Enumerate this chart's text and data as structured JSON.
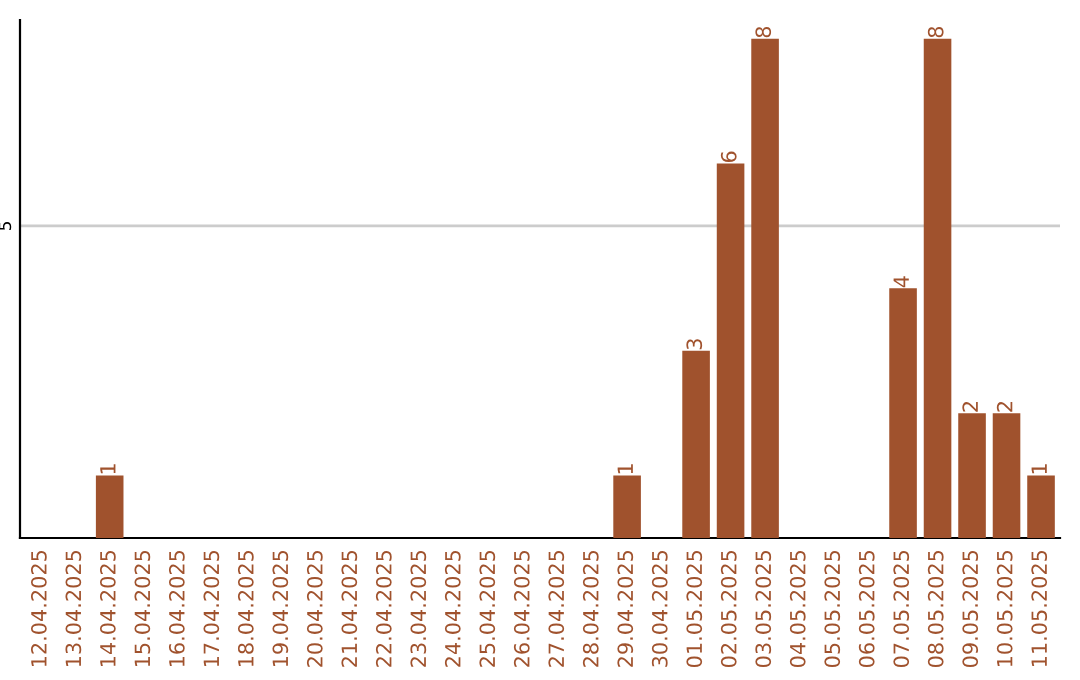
{
  "chart_data": {
    "type": "bar",
    "categories": [
      "12.04.2025",
      "13.04.2025",
      "14.04.2025",
      "15.04.2025",
      "16.04.2025",
      "17.04.2025",
      "18.04.2025",
      "19.04.2025",
      "20.04.2025",
      "21.04.2025",
      "22.04.2025",
      "23.04.2025",
      "24.04.2025",
      "25.04.2025",
      "26.04.2025",
      "27.04.2025",
      "28.04.2025",
      "29.04.2025",
      "30.04.2025",
      "01.05.2025",
      "02.05.2025",
      "03.05.2025",
      "04.05.2025",
      "05.05.2025",
      "06.05.2025",
      "07.05.2025",
      "08.05.2025",
      "09.05.2025",
      "10.05.2025",
      "11.05.2025"
    ],
    "values": [
      0,
      0,
      1,
      0,
      0,
      0,
      0,
      0,
      0,
      0,
      0,
      0,
      0,
      0,
      0,
      0,
      0,
      1,
      0,
      3,
      6,
      8,
      0,
      0,
      0,
      4,
      8,
      2,
      2,
      1
    ],
    "value_labels": [
      null,
      null,
      "1",
      null,
      null,
      null,
      null,
      null,
      null,
      null,
      null,
      null,
      null,
      null,
      null,
      null,
      null,
      "1",
      null,
      "3",
      "6",
      "8",
      null,
      null,
      null,
      "4",
      "8",
      "2",
      "2",
      "1"
    ],
    "color": "#a0522d",
    "ylim": [
      0,
      8.3
    ],
    "yticks": [
      5
    ],
    "grid": "y"
  }
}
